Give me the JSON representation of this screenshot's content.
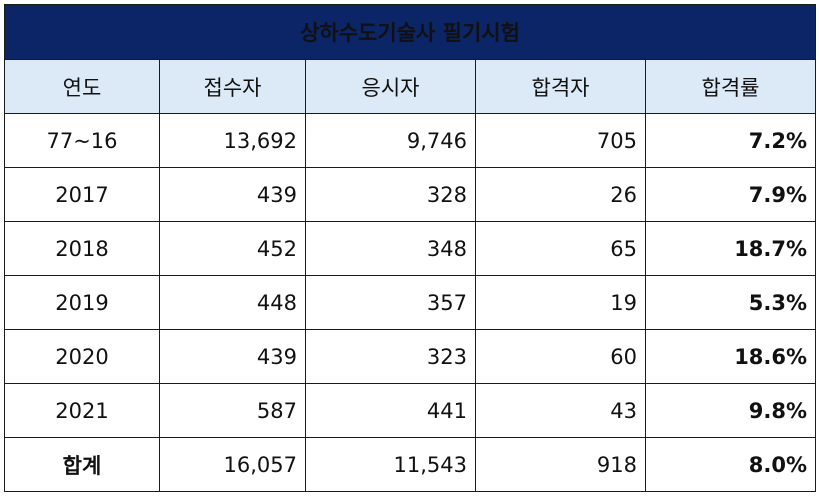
{
  "title": "상하수도기술사 필기시험",
  "headers": [
    "연도",
    "접수자",
    "응시자",
    "합격자",
    "합격률"
  ],
  "rows": [
    {
      "year": "77~16",
      "applicants": "13,692",
      "examinees": "9,746",
      "passers": "705",
      "rate": "7.2%"
    },
    {
      "year": "2017",
      "applicants": "439",
      "examinees": "328",
      "passers": "26",
      "rate": "7.9%"
    },
    {
      "year": "2018",
      "applicants": "452",
      "examinees": "348",
      "passers": "65",
      "rate": "18.7%"
    },
    {
      "year": "2019",
      "applicants": "448",
      "examinees": "357",
      "passers": "19",
      "rate": "5.3%"
    },
    {
      "year": "2020",
      "applicants": "439",
      "examinees": "323",
      "passers": "60",
      "rate": "18.6%"
    },
    {
      "year": "2021",
      "applicants": "587",
      "examinees": "441",
      "passers": "43",
      "rate": "9.8%"
    }
  ],
  "total": {
    "label": "합계",
    "applicants": "16,057",
    "examinees": "11,543",
    "passers": "918",
    "rate": "8.0%"
  },
  "colors": {
    "title_bg": "#0b2566",
    "header_bg": "#dce9f6"
  }
}
